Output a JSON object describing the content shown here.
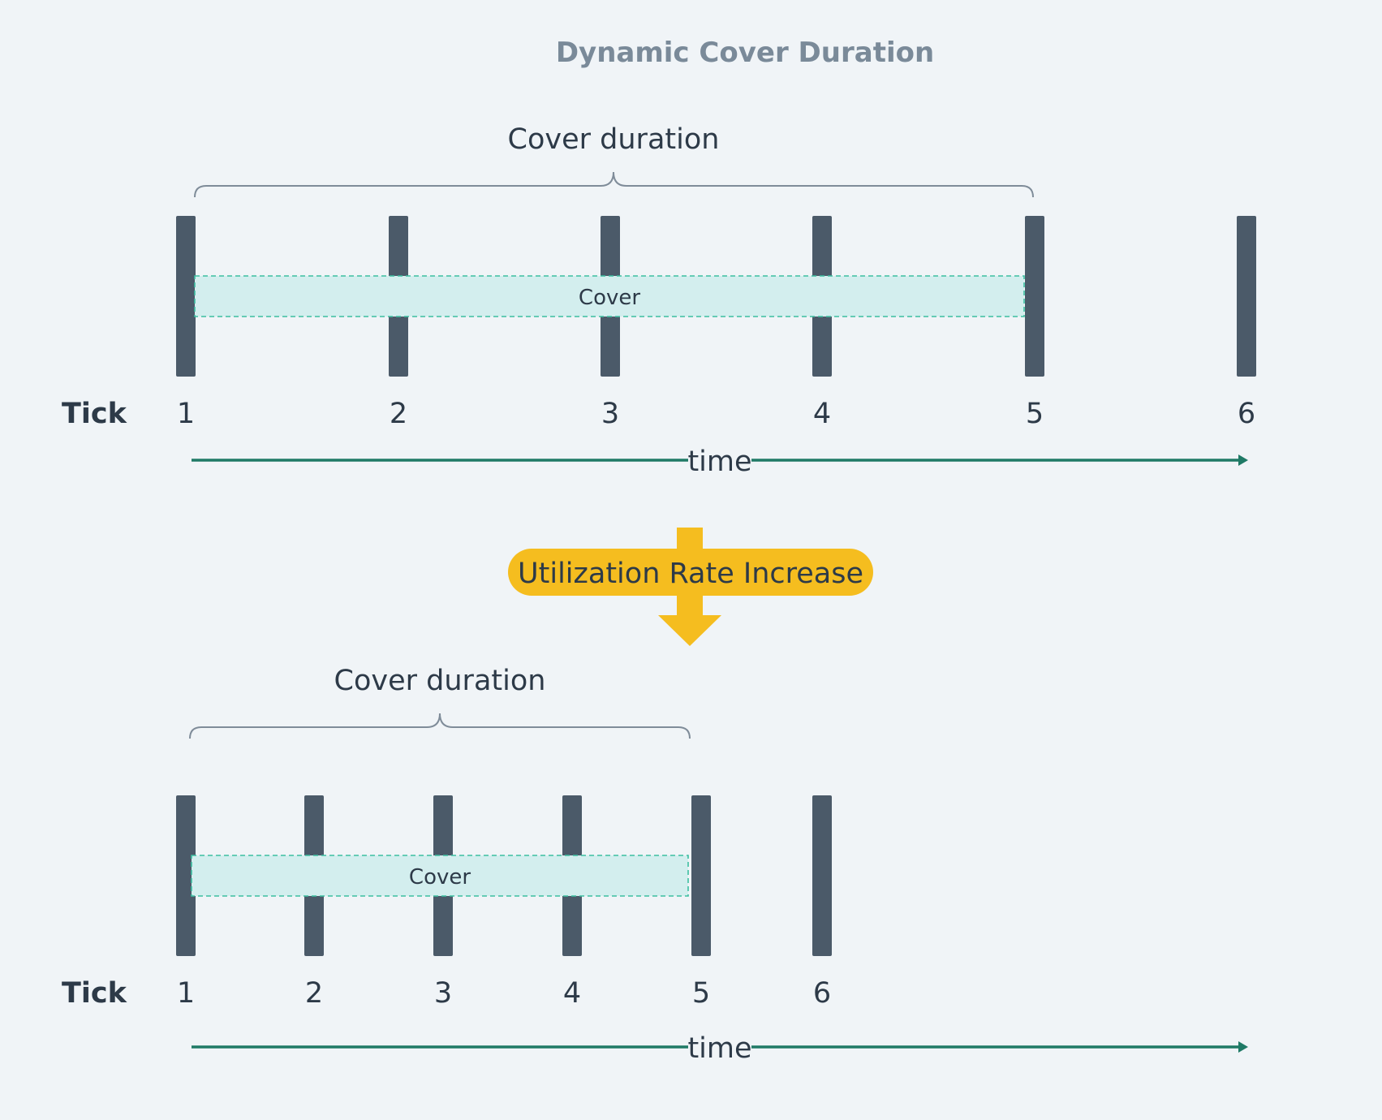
{
  "title": "Dynamic Cover Duration",
  "transition": {
    "label": "Utilization Rate Increase"
  },
  "panels": [
    {
      "brace_label": "Cover duration",
      "row_label": "Tick",
      "ticks": [
        "1",
        "2",
        "3",
        "4",
        "5",
        "6"
      ],
      "cover_label": "Cover",
      "axis_label": "time"
    },
    {
      "brace_label": "Cover duration",
      "row_label": "Tick",
      "ticks": [
        "1",
        "2",
        "3",
        "4",
        "5",
        "6"
      ],
      "cover_label": "Cover",
      "axis_label": "time"
    }
  ],
  "colors": {
    "background": "#f0f4f7",
    "tick_bar": "#4b5a69",
    "cover_fill": "#d3eeee",
    "cover_border": "#3cbfa1",
    "axis": "#1f7a66",
    "brace": "#7f8c99",
    "badge": "#f5bd1f",
    "title": "#7a8a99",
    "text": "#2d3a48"
  }
}
